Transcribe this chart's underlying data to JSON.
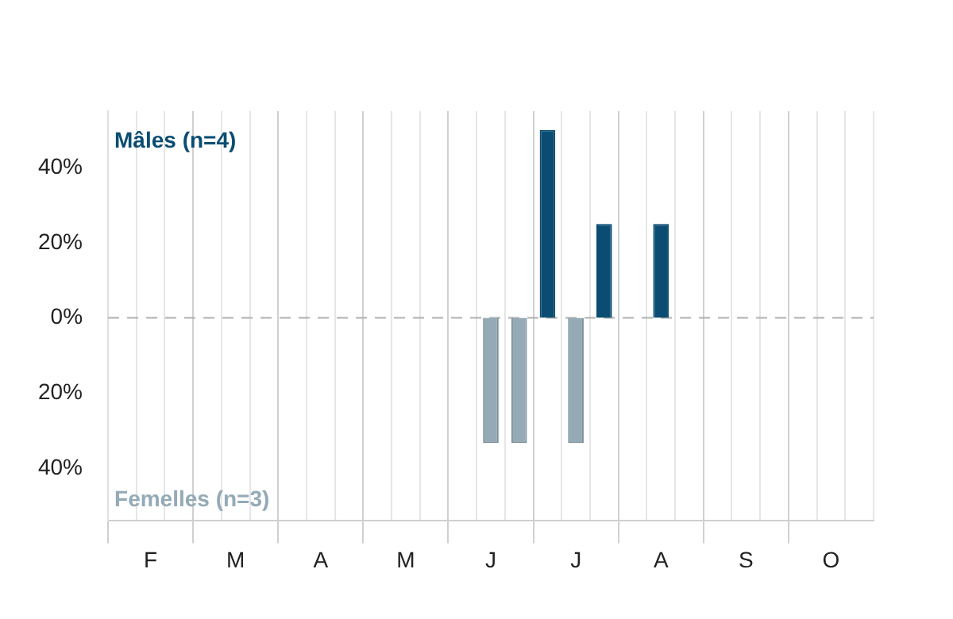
{
  "chart_data": {
    "type": "bar",
    "stacked": true,
    "categories": [
      null,
      "F",
      null,
      null,
      "M",
      null,
      null,
      "A",
      null,
      null,
      "M",
      null,
      null,
      "J",
      null,
      null,
      "J",
      null,
      null,
      "A",
      null,
      null,
      "S",
      null,
      null,
      "O",
      null
    ],
    "series": [
      {
        "name": "Mâles (n=4)",
        "color": "#0b4d72",
        "values": [
          null,
          null,
          null,
          null,
          null,
          null,
          null,
          null,
          null,
          null,
          null,
          null,
          null,
          null,
          null,
          50,
          null,
          25,
          null,
          25,
          null,
          null,
          null,
          null,
          null,
          null,
          null
        ]
      },
      {
        "name": "Femelles (n=3)",
        "color": "#94aab7",
        "values": [
          null,
          null,
          null,
          null,
          null,
          null,
          null,
          null,
          null,
          null,
          null,
          null,
          null,
          -33.3,
          -33.3,
          null,
          -33.3,
          null,
          null,
          null,
          null,
          null,
          null,
          null,
          null,
          null,
          null
        ]
      }
    ],
    "ylim": [
      -54,
      55
    ],
    "yticks": [
      {
        "value": -40,
        "label": "40%"
      },
      {
        "value": -20,
        "label": "20%"
      },
      {
        "value": 0,
        "label": "0%"
      },
      {
        "value": 20,
        "label": "20%"
      },
      {
        "value": 40,
        "label": "40%"
      }
    ],
    "grid": "x",
    "legend": false,
    "ref_lines": [
      {
        "axis": "y",
        "value": 0,
        "line_style": "dashed",
        "color": "#b0b0b0"
      }
    ]
  }
}
